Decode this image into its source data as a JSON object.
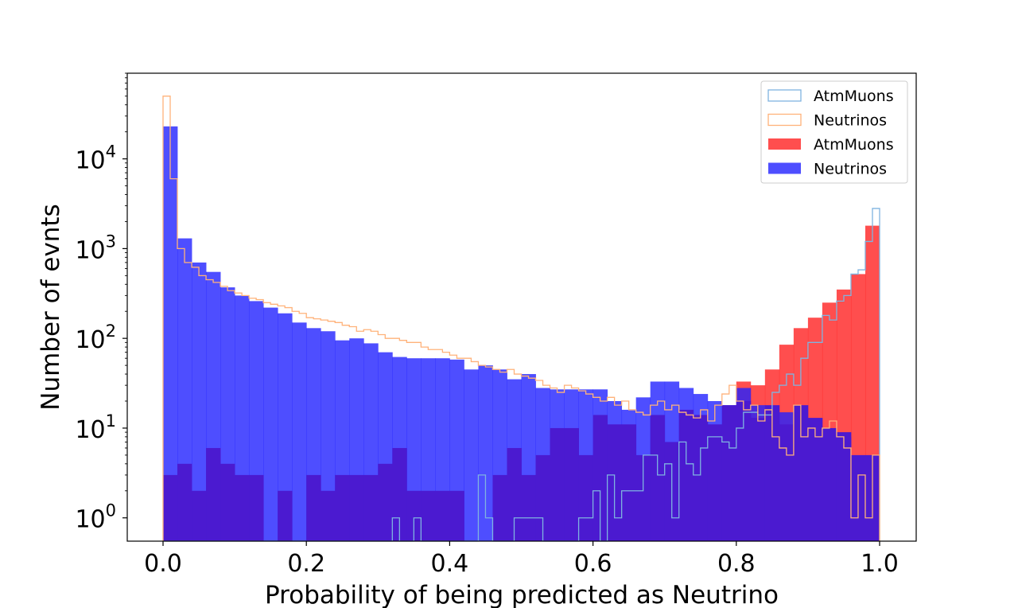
{
  "chart_data": {
    "type": "histogram",
    "title": "",
    "xlabel": "Probability of being predicted as Neutrino",
    "ylabel": "Number of evnts",
    "yscale": "log",
    "xlim": [
      -0.05,
      1.05
    ],
    "ylim": [
      0.55,
      90000
    ],
    "x_ticks": [
      "0.0",
      "0.2",
      "0.4",
      "0.6",
      "0.8",
      "1.0"
    ],
    "y_ticks": [
      {
        "base": "10",
        "exp": "0"
      },
      {
        "base": "10",
        "exp": "1"
      },
      {
        "base": "10",
        "exp": "2"
      },
      {
        "base": "10",
        "exp": "3"
      },
      {
        "base": "10",
        "exp": "4"
      }
    ],
    "legend_position": "top-right",
    "grid": false,
    "series": [
      {
        "name": "AtmMuons",
        "style": "step",
        "color": "#7fb3e0",
        "bin_start": 0.0,
        "bin_width": 0.01,
        "values": [
          0,
          0,
          0,
          0,
          0,
          0,
          0,
          0,
          0,
          0,
          0,
          0,
          0,
          0,
          0,
          0,
          0,
          0,
          0,
          0,
          0,
          0,
          0,
          0,
          0,
          0,
          0,
          0,
          0,
          0,
          0,
          0,
          1,
          0,
          0,
          1,
          0,
          0,
          0,
          0,
          0,
          0,
          0,
          0,
          3,
          1,
          0,
          0,
          0,
          1,
          1,
          1,
          1,
          0,
          0,
          0,
          0,
          0,
          1,
          1,
          2,
          0,
          3,
          1,
          2,
          2,
          2,
          5,
          5,
          3,
          4,
          1,
          7,
          4,
          3,
          6,
          8,
          8,
          7,
          6,
          10,
          15,
          15,
          14,
          14,
          25,
          30,
          40,
          30,
          60,
          90,
          90,
          180,
          160,
          260,
          300,
          520,
          580,
          1200,
          2800
        ]
      },
      {
        "name": "Neutrinos",
        "style": "step",
        "color": "#ffb27a",
        "bin_start": 0.0,
        "bin_width": 0.01,
        "values": [
          50000,
          6000,
          1000,
          700,
          620,
          500,
          450,
          420,
          380,
          340,
          320,
          300,
          280,
          270,
          250,
          240,
          230,
          220,
          200,
          190,
          170,
          165,
          160,
          155,
          150,
          140,
          135,
          120,
          125,
          120,
          110,
          100,
          100,
          95,
          90,
          90,
          80,
          75,
          75,
          70,
          65,
          60,
          60,
          55,
          50,
          48,
          45,
          42,
          45,
          40,
          38,
          36,
          34,
          30,
          28,
          25,
          30,
          28,
          26,
          24,
          22,
          20,
          22,
          18,
          20,
          16,
          15,
          14,
          18,
          20,
          16,
          18,
          15,
          14,
          13,
          16,
          12,
          18,
          24,
          30,
          20,
          16,
          18,
          12,
          16,
          8,
          6,
          5,
          18,
          8,
          10,
          8,
          10,
          12,
          8,
          6,
          1,
          3,
          1,
          5
        ]
      },
      {
        "name": "AtmMuons",
        "style": "filled",
        "color": "#ff2222",
        "bin_start": 0.0,
        "bin_width": 0.02,
        "values": [
          0,
          0,
          0,
          0,
          0,
          0,
          0,
          0,
          0,
          0,
          0,
          0,
          0,
          0,
          0,
          0,
          0,
          0,
          0,
          0,
          0,
          0,
          0,
          0,
          0,
          0,
          0,
          0,
          0,
          0,
          0,
          0,
          0,
          0,
          0,
          0,
          0,
          0,
          0,
          0,
          33,
          30,
          45,
          85,
          130,
          170,
          250,
          350,
          520,
          1800
        ]
      },
      {
        "name": "Neutrinos",
        "style": "filled",
        "color": "#2222ff",
        "bin_start": 0.0,
        "bin_width": 0.02,
        "values": [
          23000,
          1300,
          700,
          550,
          370,
          300,
          260,
          220,
          190,
          150,
          130,
          120,
          95,
          100,
          88,
          70,
          62,
          60,
          60,
          60,
          58,
          45,
          50,
          45,
          35,
          40,
          28,
          27,
          27,
          27,
          27,
          20,
          16,
          22,
          33,
          33,
          28,
          24,
          20,
          18,
          28,
          18,
          12,
          15,
          12,
          9,
          9,
          8,
          3,
          1.4
        ]
      },
      {
        "name": "",
        "style": "overlap",
        "color": "#4b1ad0",
        "bin_start": 0.0,
        "bin_width": 0.02,
        "values": [
          3,
          4,
          2,
          6,
          4,
          3,
          3,
          0,
          2,
          0,
          3,
          2,
          3,
          3,
          3,
          4,
          6,
          2,
          2,
          2,
          2,
          0,
          0,
          3,
          6,
          3,
          5,
          10,
          10,
          5,
          14,
          11,
          11,
          5,
          14,
          7,
          16,
          14,
          11,
          18,
          20,
          13,
          18,
          11,
          18,
          13,
          10,
          9,
          5,
          5
        ]
      }
    ]
  }
}
